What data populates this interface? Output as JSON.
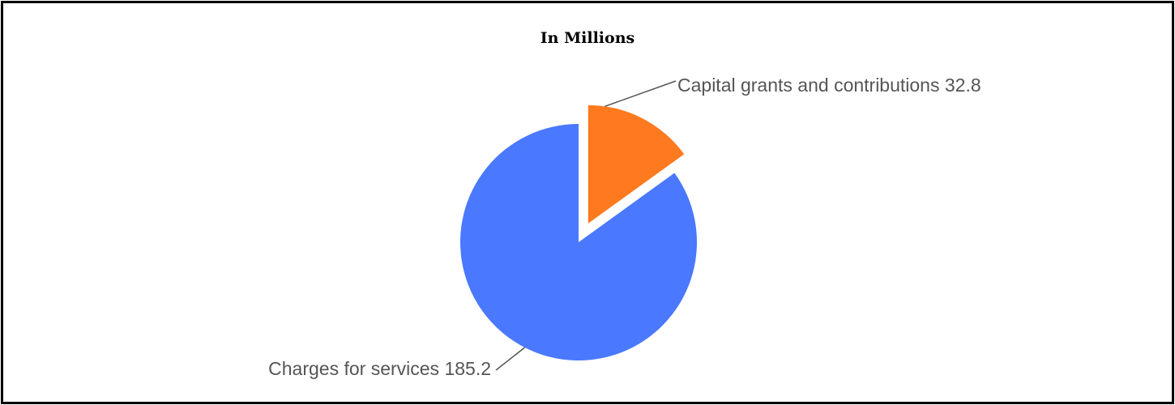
{
  "chart_data": {
    "type": "pie",
    "title": "In Millions",
    "slices": [
      {
        "label": "Charges for services",
        "value": 185.2,
        "color": "#4a78ff"
      },
      {
        "label": "Capital grants and contributions",
        "value": 32.8,
        "color": "#ff7a1f"
      }
    ],
    "exploded": "Capital grants and contributions",
    "legend": "none",
    "data_labels": "outside with leader lines"
  }
}
